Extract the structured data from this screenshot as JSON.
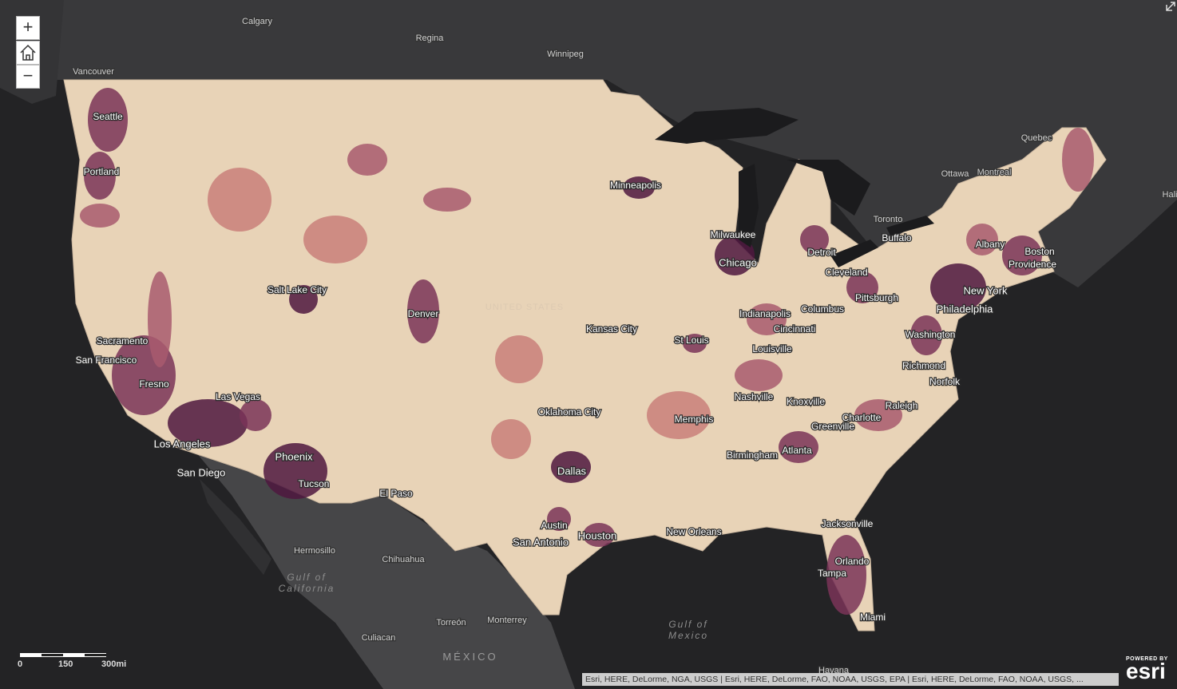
{
  "map": {
    "places": [
      "Calgary",
      "Regina",
      "Winnipeg",
      "Vancouver",
      "Seattle",
      "Portland",
      "Minneapolis",
      "Quebec",
      "Ottawa",
      "Montreal",
      "Hali",
      "Toronto",
      "Buffalo",
      "Albany",
      "Boston",
      "Providence",
      "Milwaukee",
      "Detroit",
      "Chicago",
      "Cleveland",
      "New York",
      "Pittsburgh",
      "Philadelphia",
      "Salt Lake City",
      "Denver",
      "Indianapolis",
      "Columbus",
      "Kansas City",
      "St Louis",
      "Cincinnati",
      "Washington",
      "Sacramento",
      "Louisville",
      "San Francisco",
      "Richmond",
      "Norfolk",
      "Fresno",
      "Nashville",
      "Knoxville",
      "Las Vegas",
      "Raleigh",
      "Oklahoma City",
      "Charlotte",
      "Memphis",
      "Greenville",
      "Los Angeles",
      "Atlanta",
      "Birmingham",
      "Phoenix",
      "Dallas",
      "San Diego",
      "Tucson",
      "El Paso",
      "Austin",
      "Houston",
      "New Orleans",
      "Jacksonville",
      "San Antonio",
      "Hermosillo",
      "Chihuahua",
      "Orlando",
      "Tampa",
      "Torreón",
      "Monterrey",
      "Culiacan",
      "Miami",
      "Havana",
      "UNITED STATES"
    ],
    "water": [
      [
        "Gulf of",
        "California"
      ],
      [
        "Gulf of",
        "Mexico"
      ]
    ],
    "country": "MÉXICO",
    "scale_bar": [
      "0",
      "150",
      "300mi"
    ],
    "attribution": "Esri, HERE, DeLorme, NGA, USGS | Esri, HERE, DeLorme, FAO, NOAA, USGS, EPA | Esri, HERE, DeLorme, FAO, NOAA, USGS, ...",
    "logo": {
      "powered_by": "POWERED BY",
      "brand": "esri"
    },
    "controls": {
      "zoom_in": "+",
      "zoom_out": "−"
    }
  }
}
